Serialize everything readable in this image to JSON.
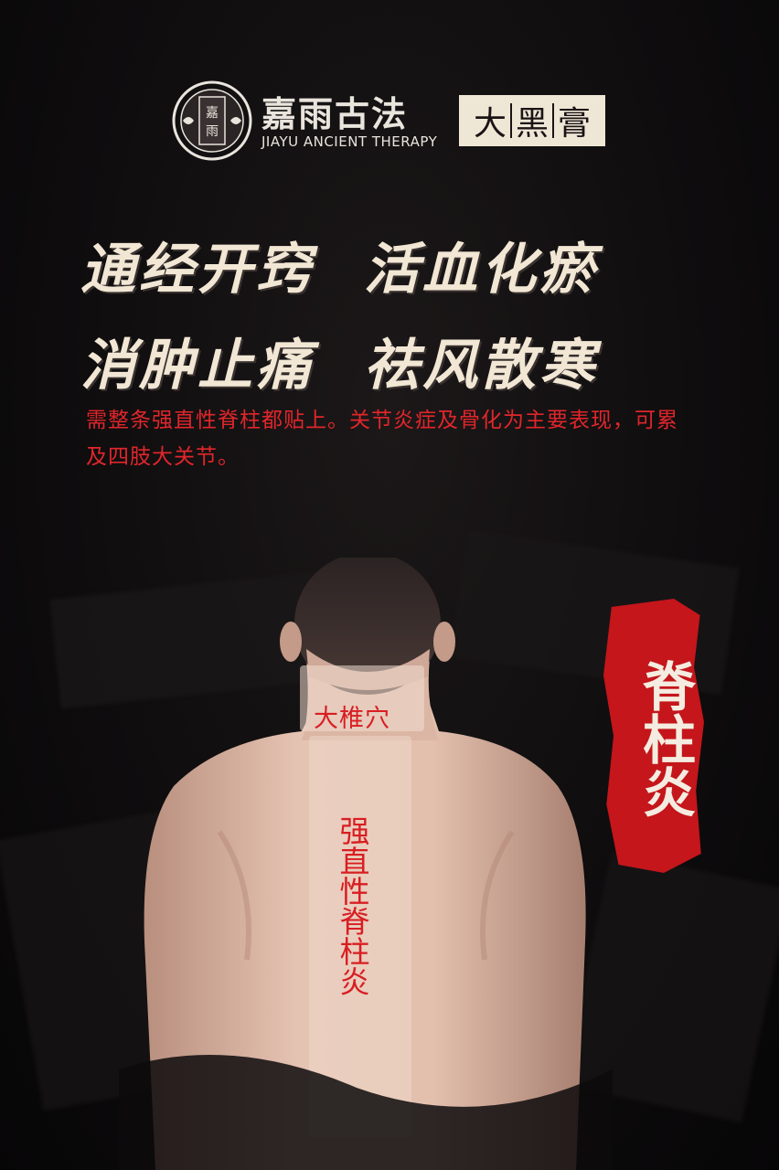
{
  "header": {
    "logo_text": "嘉雨",
    "brand_name": "嘉雨古法",
    "brand_en": "JIAYU ANCIENT THERAPY",
    "product": [
      "大",
      "黑",
      "膏"
    ]
  },
  "headline": {
    "row1": [
      "通经开窍",
      "活血化瘀"
    ],
    "row2": [
      "消肿止痛",
      "祛风散寒"
    ]
  },
  "description": "需整条强直性脊柱都贴上。关节炎症及骨化为主要表现，可累及四肢大关节。",
  "figure": {
    "acupoint_label": "大椎穴",
    "spine_label": "强直性脊柱炎",
    "tag": "脊柱炎"
  },
  "colors": {
    "background": "#0b0a0b",
    "accent_red": "#d81e22",
    "cream": "#f1e7d4"
  }
}
